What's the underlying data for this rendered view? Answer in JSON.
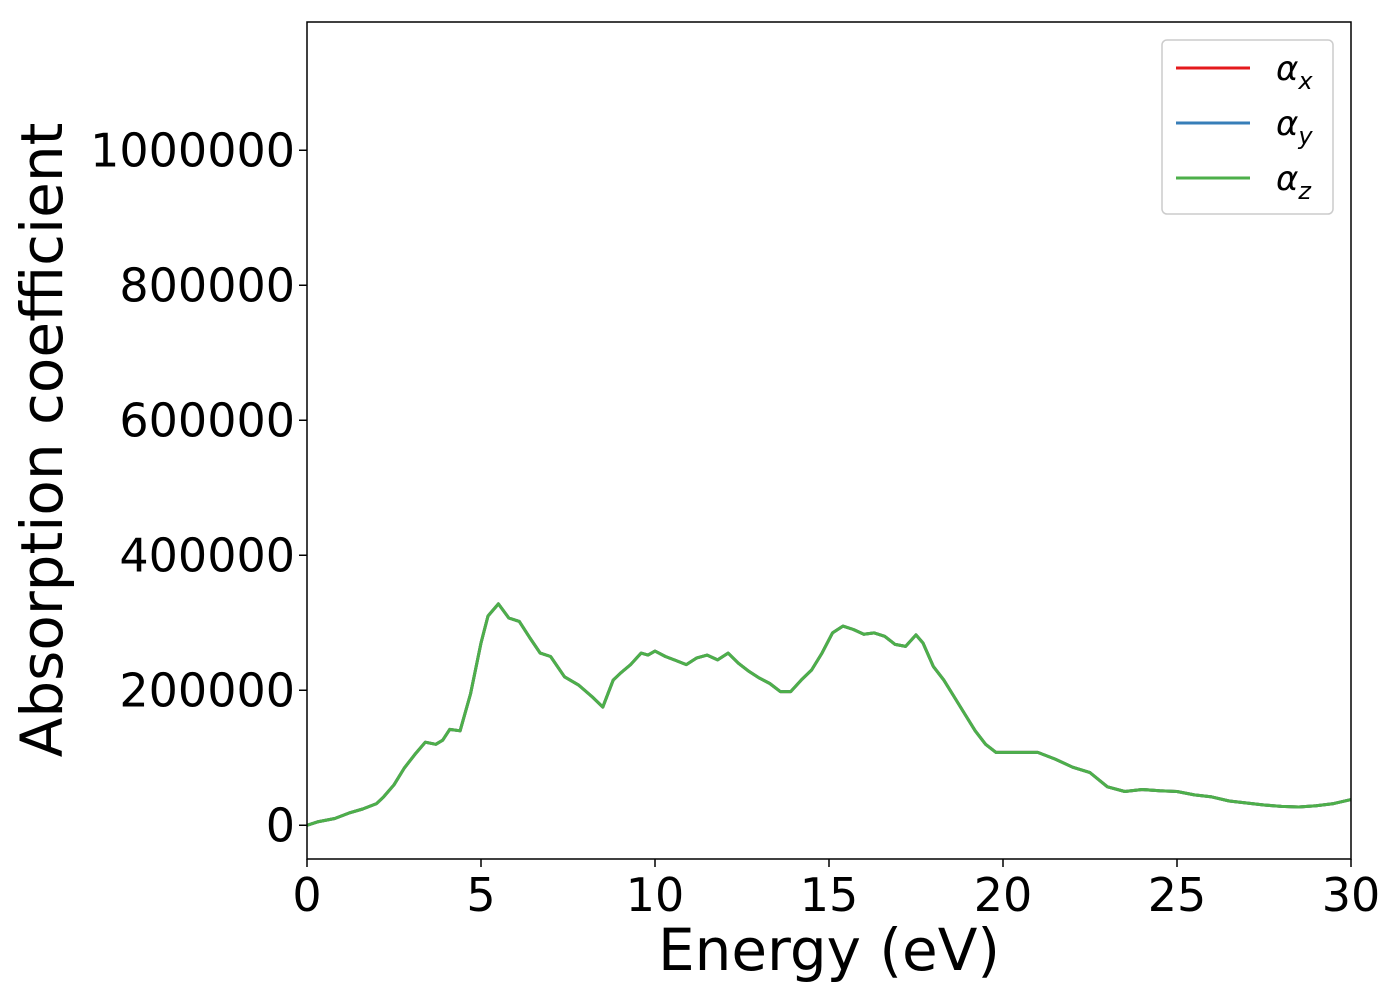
{
  "chart_data": {
    "type": "line",
    "title": "",
    "xlabel": "Energy (eV)",
    "ylabel": "Absorption coefficient",
    "xlim": [
      0,
      30
    ],
    "ylim": [
      -50000,
      1190000
    ],
    "xticks": [
      0,
      5,
      10,
      15,
      20,
      25,
      30
    ],
    "xtick_labels": [
      "0",
      "5",
      "10",
      "15",
      "20",
      "25",
      "30"
    ],
    "yticks": [
      0,
      200000,
      400000,
      600000,
      800000,
      1000000
    ],
    "ytick_labels": [
      "0",
      "200000",
      "400000",
      "600000",
      "800000",
      "1000000"
    ],
    "grid": false,
    "legend_position": "top-right",
    "x": [
      0,
      0.3,
      0.8,
      1.2,
      1.6,
      2.0,
      2.2,
      2.5,
      2.8,
      3.1,
      3.4,
      3.7,
      3.9,
      4.1,
      4.4,
      4.7,
      5.0,
      5.2,
      5.5,
      5.8,
      6.1,
      6.4,
      6.7,
      7.0,
      7.4,
      7.8,
      8.2,
      8.5,
      8.8,
      9.0,
      9.3,
      9.6,
      9.8,
      10.0,
      10.3,
      10.6,
      10.9,
      11.2,
      11.5,
      11.8,
      12.1,
      12.4,
      12.7,
      13.0,
      13.3,
      13.6,
      13.9,
      14.2,
      14.5,
      14.8,
      15.1,
      15.4,
      15.7,
      16.0,
      16.3,
      16.6,
      16.9,
      17.2,
      17.5,
      17.7,
      18.0,
      18.3,
      18.6,
      18.9,
      19.2,
      19.5,
      19.8,
      20.0,
      20.5,
      21.0,
      21.5,
      22.0,
      22.5,
      23.0,
      23.5,
      24.0,
      24.5,
      25.0,
      25.5,
      26.0,
      26.5,
      27.0,
      27.5,
      28.0,
      28.5,
      29.0,
      29.5,
      30.0
    ],
    "series": [
      {
        "name": "αx",
        "symbol": "α",
        "subscript": "x",
        "color": "#e41a1c",
        "values": [
          0,
          5000,
          10000,
          18000,
          24000,
          32000,
          42000,
          60000,
          85000,
          105000,
          123000,
          120000,
          126000,
          142000,
          140000,
          195000,
          270000,
          310000,
          328000,
          307000,
          302000,
          278000,
          255000,
          250000,
          220000,
          208000,
          190000,
          175000,
          215000,
          225000,
          238000,
          255000,
          252000,
          258000,
          250000,
          244000,
          238000,
          248000,
          252000,
          245000,
          255000,
          240000,
          228000,
          218000,
          210000,
          198000,
          198000,
          215000,
          230000,
          255000,
          285000,
          295000,
          290000,
          283000,
          285000,
          280000,
          268000,
          265000,
          282000,
          270000,
          235000,
          215000,
          190000,
          165000,
          140000,
          120000,
          108000,
          108000,
          108000,
          108000,
          98000,
          86000,
          78000,
          57000,
          50000,
          53000,
          51000,
          50000,
          45000,
          42000,
          36000,
          33000,
          30000,
          28000,
          27000,
          29000,
          32000,
          38000
        ]
      },
      {
        "name": "αy",
        "symbol": "α",
        "subscript": "y",
        "color": "#377eb8",
        "values": [
          0,
          5000,
          10000,
          18000,
          24000,
          32000,
          42000,
          60000,
          85000,
          105000,
          123000,
          120000,
          126000,
          142000,
          140000,
          195000,
          270000,
          310000,
          328000,
          307000,
          302000,
          278000,
          255000,
          250000,
          220000,
          208000,
          190000,
          175000,
          215000,
          225000,
          238000,
          255000,
          252000,
          258000,
          250000,
          244000,
          238000,
          248000,
          252000,
          245000,
          255000,
          240000,
          228000,
          218000,
          210000,
          198000,
          198000,
          215000,
          230000,
          255000,
          285000,
          295000,
          290000,
          283000,
          285000,
          280000,
          268000,
          265000,
          282000,
          270000,
          235000,
          215000,
          190000,
          165000,
          140000,
          120000,
          108000,
          108000,
          108000,
          108000,
          98000,
          86000,
          78000,
          57000,
          50000,
          53000,
          51000,
          50000,
          45000,
          42000,
          36000,
          33000,
          30000,
          28000,
          27000,
          29000,
          32000,
          38000
        ]
      },
      {
        "name": "αz",
        "symbol": "α",
        "subscript": "z",
        "color": "#4daf4a",
        "values": [
          0,
          5000,
          10000,
          18000,
          24000,
          32000,
          42000,
          60000,
          85000,
          105000,
          123000,
          120000,
          126000,
          142000,
          140000,
          195000,
          270000,
          310000,
          328000,
          307000,
          302000,
          278000,
          255000,
          250000,
          220000,
          208000,
          190000,
          175000,
          215000,
          225000,
          238000,
          255000,
          252000,
          258000,
          250000,
          244000,
          238000,
          248000,
          252000,
          245000,
          255000,
          240000,
          228000,
          218000,
          210000,
          198000,
          198000,
          215000,
          230000,
          255000,
          285000,
          295000,
          290000,
          283000,
          285000,
          280000,
          268000,
          265000,
          282000,
          270000,
          235000,
          215000,
          190000,
          165000,
          140000,
          120000,
          108000,
          108000,
          108000,
          108000,
          98000,
          86000,
          78000,
          57000,
          50000,
          53000,
          51000,
          50000,
          45000,
          42000,
          36000,
          33000,
          30000,
          28000,
          27000,
          29000,
          32000,
          38000
        ]
      }
    ]
  }
}
